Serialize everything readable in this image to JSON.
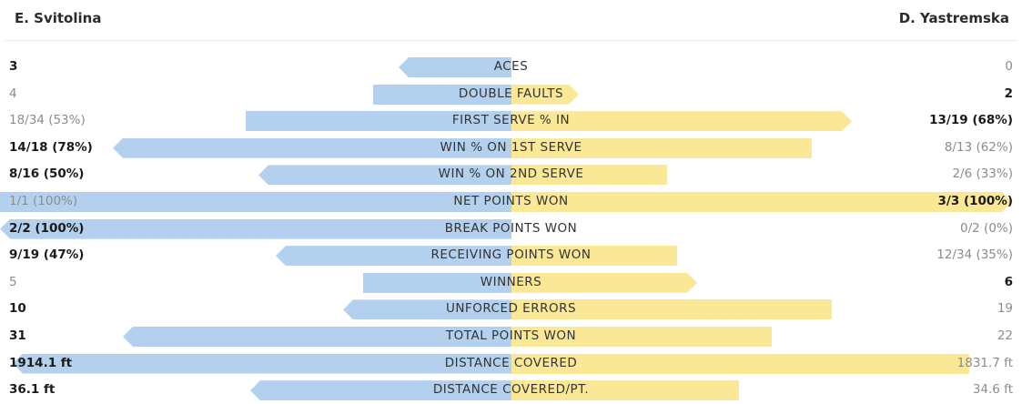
{
  "player_left": "E. Svitolina",
  "player_right": "D. Yastremska",
  "colors": {
    "left_bar": "#b3d1ef",
    "right_bar": "#fbe896"
  },
  "stats": [
    {
      "label": "ACES",
      "left": "3",
      "right": "0",
      "left_fraction": 0.22,
      "right_fraction": 0.0,
      "winner": "left"
    },
    {
      "label": "DOUBLE FAULTS",
      "left": "4",
      "right": "2",
      "left_fraction": 0.27,
      "right_fraction": 0.135,
      "winner": "right"
    },
    {
      "label": "FIRST SERVE % IN",
      "left": "18/34 (53%)",
      "right": "13/19 (68%)",
      "left_fraction": 0.52,
      "right_fraction": 0.68,
      "winner": "right"
    },
    {
      "label": "WIN % ON 1ST SERVE",
      "left": "14/18 (78%)",
      "right": "8/13 (62%)",
      "left_fraction": 0.78,
      "right_fraction": 0.6,
      "winner": "left"
    },
    {
      "label": "WIN % ON 2ND SERVE",
      "left": "8/16 (50%)",
      "right": "2/6 (33%)",
      "left_fraction": 0.495,
      "right_fraction": 0.31,
      "winner": "left"
    },
    {
      "label": "NET POINTS WON",
      "left": "1/1 (100%)",
      "right": "3/3 (100%)",
      "left_fraction": 1.0,
      "right_fraction": 1.0,
      "winner": "right"
    },
    {
      "label": "BREAK POINTS WON",
      "left": "2/2 (100%)",
      "right": "0/2 (0%)",
      "left_fraction": 1.0,
      "right_fraction": 0.0,
      "winner": "left"
    },
    {
      "label": "RECEIVING POINTS WON",
      "left": "9/19 (47%)",
      "right": "12/34 (35%)",
      "left_fraction": 0.46,
      "right_fraction": 0.33,
      "winner": "left"
    },
    {
      "label": "WINNERS",
      "left": "5",
      "right": "6",
      "left_fraction": 0.29,
      "right_fraction": 0.37,
      "winner": "right"
    },
    {
      "label": "UNFORCED ERRORS",
      "left": "10",
      "right": "19",
      "left_fraction": 0.33,
      "right_fraction": 0.64,
      "winner": "left"
    },
    {
      "label": "TOTAL POINTS WON",
      "left": "31",
      "right": "22",
      "left_fraction": 0.76,
      "right_fraction": 0.52,
      "winner": "left"
    },
    {
      "label": "DISTANCE COVERED",
      "left": "1914.1 ft",
      "right": "1831.7 ft",
      "left_fraction": 0.975,
      "right_fraction": 0.915,
      "winner": "left"
    },
    {
      "label": "DISTANCE COVERED/PT.",
      "left": "36.1 ft",
      "right": "34.6 ft",
      "left_fraction": 0.51,
      "right_fraction": 0.455,
      "winner": "left"
    }
  ]
}
